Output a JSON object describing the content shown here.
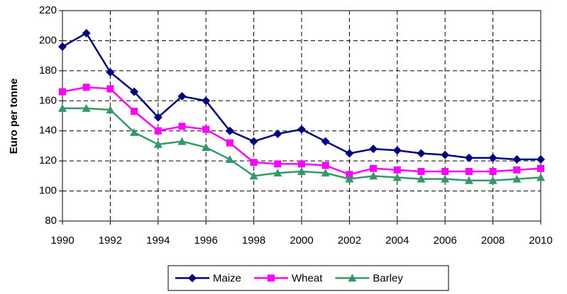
{
  "chart_data": {
    "type": "line",
    "y_label": "Euro per tonne",
    "x": [
      1990,
      1991,
      1992,
      1993,
      1994,
      1995,
      1996,
      1997,
      1998,
      1999,
      2000,
      2001,
      2002,
      2003,
      2004,
      2005,
      2006,
      2007,
      2008,
      2009,
      2010
    ],
    "series": [
      {
        "name": "Maize",
        "color": "#000080",
        "marker": "diamond",
        "values": [
          196,
          205,
          179,
          166,
          149,
          163,
          160,
          140,
          133,
          138,
          141,
          133,
          125,
          128,
          127,
          125,
          124,
          122,
          122,
          121,
          121
        ]
      },
      {
        "name": "Wheat",
        "color": "#ff00ff",
        "marker": "square",
        "values": [
          166,
          169,
          168,
          153,
          140,
          143,
          141,
          132,
          119,
          118,
          118,
          117,
          111,
          115,
          114,
          113,
          113,
          113,
          113,
          114,
          115
        ]
      },
      {
        "name": "Barley",
        "color": "#339966",
        "marker": "triangle",
        "values": [
          155,
          155,
          154,
          139,
          131,
          133,
          129,
          121,
          110,
          112,
          113,
          112,
          108,
          110,
          109,
          108,
          108,
          107,
          107,
          108,
          109
        ]
      }
    ],
    "xlim": [
      1990,
      2010
    ],
    "xticks": [
      1990,
      1992,
      1994,
      1996,
      1998,
      2000,
      2002,
      2004,
      2006,
      2008,
      2010
    ],
    "ylim": [
      80,
      220
    ],
    "yticks": [
      80,
      100,
      120,
      140,
      160,
      180,
      200,
      220
    ],
    "grid": true,
    "legend": "bottom"
  }
}
